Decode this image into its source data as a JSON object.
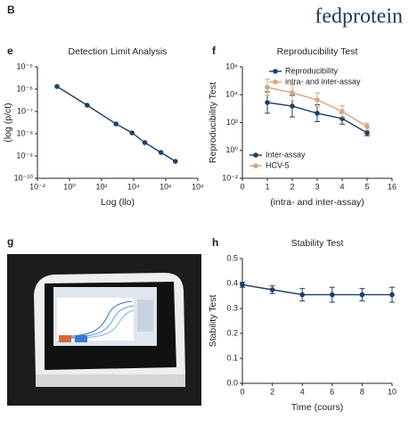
{
  "header": {
    "panel_label": "B",
    "brand": "fedprotein"
  },
  "photo": {
    "panel": "g"
  },
  "chart_data": [
    {
      "type": "line",
      "panel": "e",
      "title": "Detection Limit Analysis",
      "x_label": "Log (llo)",
      "y_label": "(log (p/ct)",
      "x": [
        -0.78,
        1.1,
        2.9,
        3.9,
        4.7,
        5.7,
        6.6
      ],
      "series": [
        {
          "color": "#1f3f66",
          "values": [
            -5.88,
            -6.72,
            -7.56,
            -7.96,
            -8.4,
            -8.84,
            -9.24
          ]
        }
      ],
      "xlim": [
        -2,
        8
      ],
      "ylim": [
        -10,
        -5
      ],
      "xticks": [
        {
          "value": -2,
          "label": "10⁻²"
        },
        {
          "value": 0,
          "label": "10⁰"
        },
        {
          "value": 2,
          "label": "10²"
        },
        {
          "value": 4,
          "label": "10⁴"
        },
        {
          "value": 6,
          "label": "10⁶"
        },
        {
          "value": 8,
          "label": "10⁸"
        }
      ],
      "yticks": [
        {
          "value": -5,
          "label": "10⁻⁵"
        },
        {
          "value": -6,
          "label": "10⁻⁶"
        },
        {
          "value": -7,
          "label": "10⁻⁷"
        },
        {
          "value": -8,
          "label": "10⁻⁸"
        },
        {
          "value": -9,
          "label": "10⁻⁹"
        },
        {
          "value": -10,
          "label": "10⁻¹⁰"
        }
      ]
    },
    {
      "type": "line",
      "panel": "f",
      "title": "Reproducibility Test",
      "x_label": "(intra- and inter-assay)",
      "y_label": "Reproducibility Test",
      "categories": [
        "0",
        "1",
        "2",
        "3",
        "4",
        "5",
        "16"
      ],
      "series": [
        {
          "name": "Reproducibility",
          "color": "#1f3f66",
          "values": [
            null,
            3.44,
            3.18,
            2.67,
            2.29,
            1.26,
            null
          ],
          "errors": [
            null,
            0.77,
            0.77,
            0.6,
            0.4,
            0.2,
            null
          ]
        },
        {
          "name": "intra- and inter-assay",
          "color": "#d9a47a",
          "values": [
            null,
            4.53,
            4.14,
            3.63,
            2.8,
            1.71,
            null
          ],
          "errors": [
            null,
            0.58,
            0.58,
            0.5,
            0.4,
            0.25,
            null
          ]
        }
      ],
      "legend2": [
        {
          "name": "Inter-assay",
          "color": "#1f3f66"
        },
        {
          "name": "HCV-5",
          "color": "#d9a47a"
        }
      ],
      "ylim": [
        -2,
        6
      ],
      "yticks": [
        {
          "value": 6,
          "label": "10⁶"
        },
        {
          "value": 4,
          "label": "10⁴"
        },
        {
          "value": 2,
          "label": "10²"
        },
        {
          "value": 0,
          "label": "10⁰"
        },
        {
          "value": -2,
          "label": "10⁻²"
        }
      ]
    },
    {
      "type": "line",
      "panel": "h",
      "title": "Stability Test",
      "x_label": "Time (cours)",
      "y_label": "Stability Test",
      "x": [
        0,
        2,
        4,
        6,
        8,
        10
      ],
      "series": [
        {
          "color": "#1f3f66",
          "values": [
            0.395,
            0.375,
            0.355,
            0.355,
            0.355,
            0.355
          ],
          "errors": [
            0.01,
            0.015,
            0.025,
            0.03,
            0.025,
            0.03
          ]
        }
      ],
      "xlim": [
        0,
        10
      ],
      "ylim": [
        0,
        0.5
      ],
      "xticks": [
        0,
        2,
        4,
        6,
        8,
        10
      ],
      "yticks": [
        0.5,
        0.4,
        0.3,
        0.2,
        0.1,
        {
          "value": 0,
          "label": "0.0"
        }
      ]
    }
  ]
}
